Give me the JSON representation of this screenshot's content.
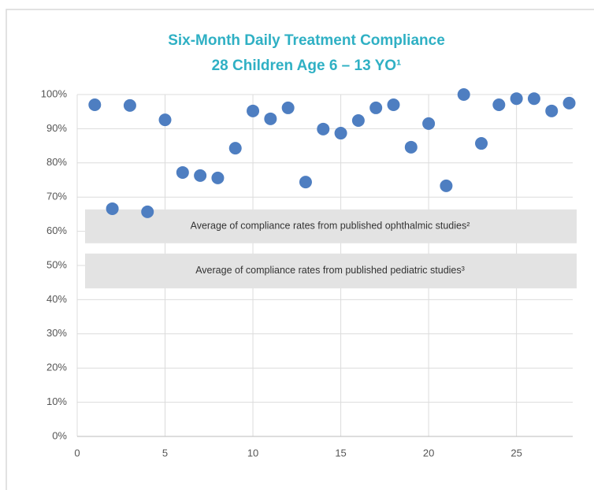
{
  "chart_data": {
    "type": "scatter",
    "title": "Six-Month Daily Treatment Compliance",
    "subtitle": "28 Children Age 6 – 13 YO¹",
    "x": [
      1,
      2,
      3,
      4,
      5,
      6,
      7,
      8,
      9,
      10,
      11,
      12,
      13,
      14,
      15,
      16,
      17,
      18,
      19,
      20,
      21,
      22,
      23,
      24,
      25,
      26,
      27,
      28
    ],
    "series": [
      {
        "color": "#4e7ec1",
        "values": [
          97,
          66.6,
          96.8,
          65.7,
          92.6,
          77.2,
          76.3,
          75.6,
          84.3,
          95.2,
          92.9,
          96.1,
          74.4,
          89.9,
          88.7,
          92.4,
          96.1,
          97,
          84.6,
          91.5,
          73.3,
          100,
          85.7,
          97,
          98.8,
          98.8,
          95.2,
          97.5
        ]
      }
    ],
    "bands": [
      {
        "label": "Average of compliance rates from published ophthalmic studies²",
        "range": [
          56.5,
          66.4
        ]
      },
      {
        "label": "Average of compliance rates from published pediatric studies³",
        "range": [
          43.3,
          53.5
        ]
      }
    ],
    "xlim": [
      0,
      28.2
    ],
    "xticks": [
      0,
      5,
      10,
      15,
      20,
      25
    ],
    "ylim": [
      0,
      100
    ],
    "yticks": [
      {
        "value": 0,
        "label": "0%"
      },
      {
        "value": 10,
        "label": "10%"
      },
      {
        "value": 20,
        "label": "20%"
      },
      {
        "value": 30,
        "label": "30%"
      },
      {
        "value": 40,
        "label": "40%"
      },
      {
        "value": 50,
        "label": "50%"
      },
      {
        "value": 60,
        "label": "60%"
      },
      {
        "value": 70,
        "label": "70%"
      },
      {
        "value": 80,
        "label": "80%"
      },
      {
        "value": 90,
        "label": "90%"
      },
      {
        "value": 100,
        "label": "100%"
      }
    ],
    "grid": true
  }
}
